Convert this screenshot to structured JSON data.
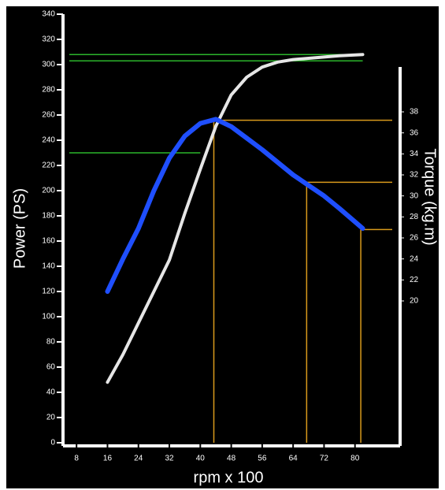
{
  "chart_data": {
    "type": "line",
    "xlabel": "rpm x 100",
    "ylabel": "Power (PS)",
    "y2label": "Torque (kg.m)",
    "xlim": [
      4.5,
      88
    ],
    "xticks": [
      8,
      16,
      24,
      32,
      40,
      48,
      56,
      64,
      72,
      80
    ],
    "ylim": [
      0,
      340
    ],
    "yticks": [
      0,
      20,
      40,
      60,
      80,
      100,
      120,
      140,
      160,
      180,
      200,
      220,
      240,
      260,
      280,
      300,
      320,
      340
    ],
    "y2lim": [
      6.5,
      47.3
    ],
    "y2ticks": [
      20,
      22,
      24,
      26,
      28,
      30,
      32,
      34,
      36,
      38
    ],
    "series": [
      {
        "color": "#e6e6e6",
        "x": [
          16,
          20,
          24,
          28,
          32,
          36,
          40,
          44,
          48,
          52,
          56,
          60,
          64,
          68,
          72,
          76,
          82
        ],
        "values": [
          48,
          70,
          95,
          120,
          145,
          182,
          217,
          251,
          276,
          290,
          298,
          302,
          304,
          305,
          306,
          307,
          308
        ]
      },
      {
        "color": "#1f4fff",
        "axis": "y2",
        "x": [
          16,
          20,
          24,
          28,
          32,
          36,
          40,
          44,
          48,
          52,
          56,
          60,
          64,
          68,
          72,
          76,
          82
        ],
        "values": [
          20.9,
          24,
          26.9,
          30.5,
          33.6,
          35.7,
          36.9,
          37.3,
          36.6,
          35.5,
          34.4,
          33.2,
          32,
          31,
          30,
          28.8,
          26.9
        ]
      }
    ],
    "power_lines": [
      {
        "power": 308,
        "rpm": 82
      },
      {
        "power": 303,
        "rpm": 82
      },
      {
        "power": 230,
        "rpm": 40
      }
    ],
    "torque_lines": [
      {
        "rpm": 43.5,
        "torque": 37.2
      },
      {
        "rpm": 67.5,
        "torque": 31.3
      },
      {
        "rpm": 81.5,
        "torque": 26.8
      }
    ]
  }
}
